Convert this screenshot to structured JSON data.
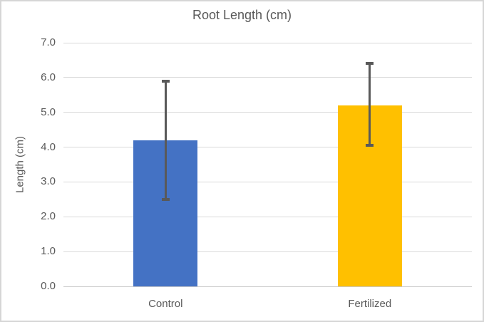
{
  "chart_data": {
    "type": "bar",
    "title": "Root Length (cm)",
    "xlabel": "",
    "ylabel": "Length (cm)",
    "categories": [
      "Control",
      "Fertilized"
    ],
    "series": [
      {
        "name": "Root Length",
        "values": [
          4.2,
          5.2
        ],
        "bar_colors": [
          "#4472C4",
          "#FFC000"
        ],
        "error_bars": [
          {
            "low": 2.5,
            "high": 5.9
          },
          {
            "low": 4.05,
            "high": 6.4
          }
        ]
      }
    ],
    "ylim": [
      0,
      7
    ],
    "ytick_step": 1.0,
    "ytick_labels": [
      "0.0",
      "1.0",
      "2.0",
      "3.0",
      "4.0",
      "5.0",
      "6.0",
      "7.0"
    ],
    "grid": true,
    "legend": "none"
  },
  "colors": {
    "bar_control": "#4472C4",
    "bar_fertilized": "#FFC000",
    "error_bar": "#595959",
    "gridline": "#D9D9D9",
    "axis_line": "#C9C9C9",
    "text": "#595959",
    "chart_border": "#D6D6D6",
    "background": "#FFFFFF"
  }
}
